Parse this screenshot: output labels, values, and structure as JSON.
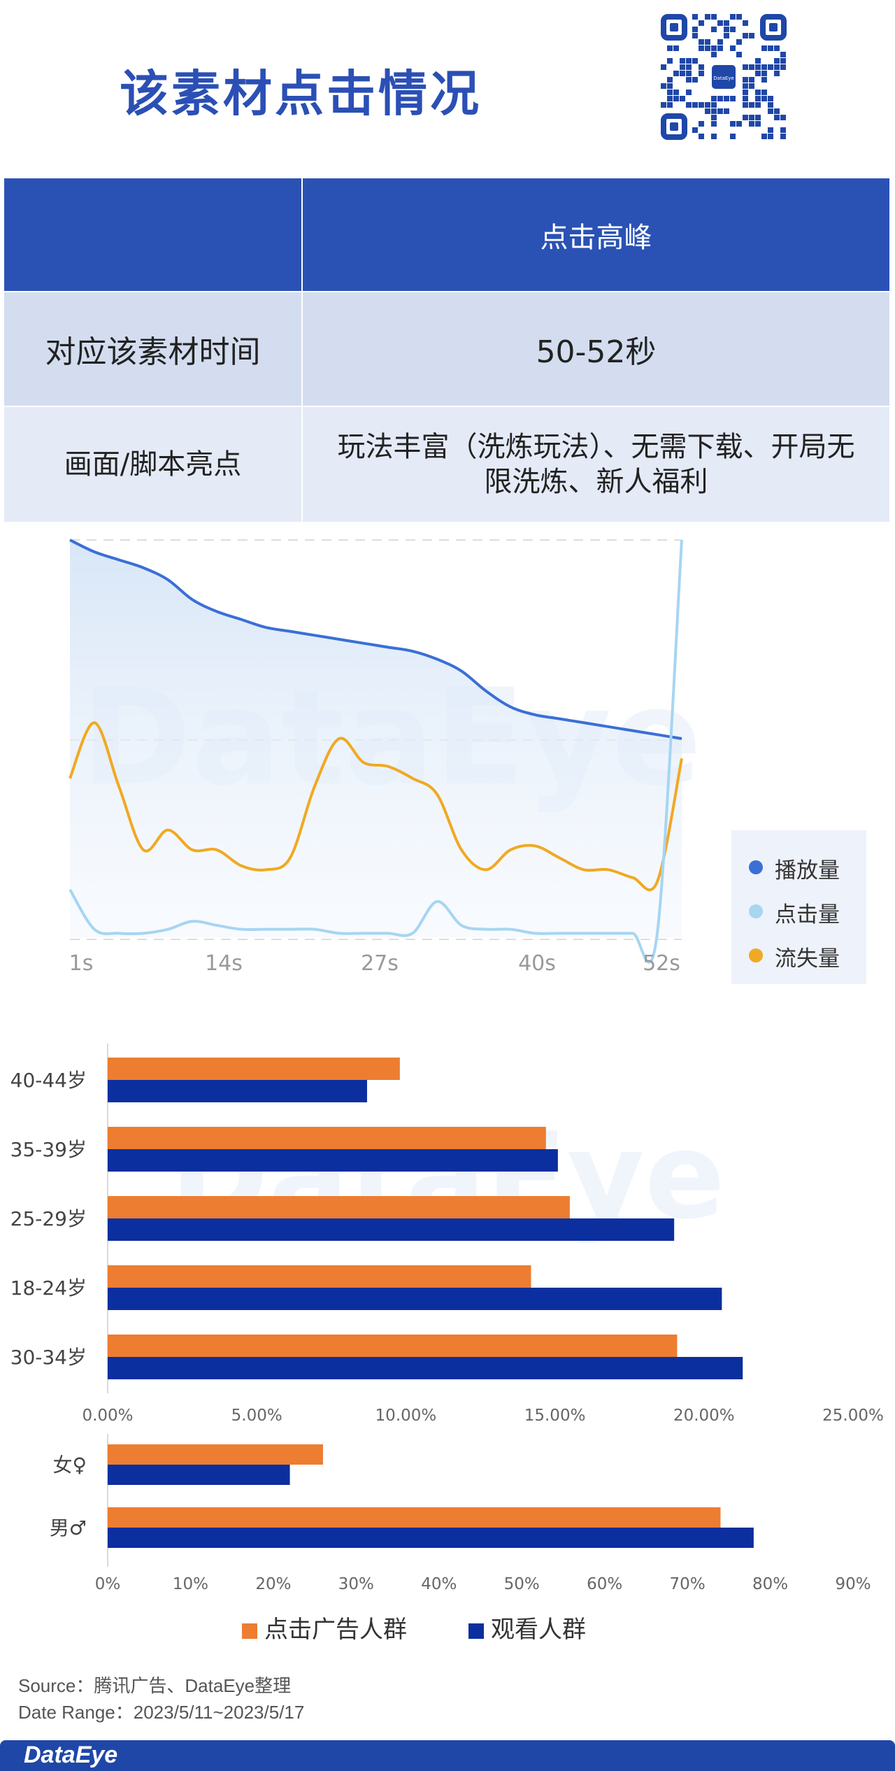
{
  "header": {
    "title": "该素材点击情况"
  },
  "table": {
    "header": [
      "",
      "点击高峰"
    ],
    "rows": [
      {
        "label": "对应该素材时间",
        "value": "50-52秒"
      },
      {
        "label": "画面/脚本亮点",
        "value_line1": "玩法丰富（洗炼玩法）、无需下载、开局无",
        "value_line2": "限洗炼、新人福利"
      }
    ]
  },
  "watermark": "DataEye",
  "chart_data": [
    {
      "type": "line",
      "x_ticks": [
        "1s",
        "14s",
        "27s",
        "40s",
        "52s"
      ],
      "y_axis_visible": false,
      "grid": "dashed horizontal",
      "legend_position": "right",
      "series": [
        {
          "name": "播放量",
          "color": "#3a6fd6",
          "values": [
            100,
            97,
            95,
            93,
            90,
            85,
            82,
            80,
            78,
            77,
            76,
            75,
            74,
            73,
            72,
            70,
            67,
            62,
            58,
            56,
            55,
            54,
            53,
            52,
            51,
            50
          ]
        },
        {
          "name": "点击量",
          "color": "#a7d5f2",
          "values": [
            12,
            2,
            1,
            1,
            2,
            4,
            3,
            2,
            2,
            2,
            2,
            1,
            1,
            1,
            1,
            9,
            3,
            2,
            2,
            1,
            1,
            1,
            1,
            1,
            1,
            100
          ]
        },
        {
          "name": "流失量",
          "color": "#f0a923",
          "values": [
            40,
            54,
            38,
            22,
            27,
            22,
            22,
            18,
            17,
            20,
            38,
            50,
            44,
            43,
            40,
            36,
            22,
            17,
            22,
            23,
            20,
            17,
            17,
            15,
            14,
            45
          ]
        }
      ]
    },
    {
      "type": "bar",
      "orientation": "horizontal",
      "categories": [
        "40-44岁",
        "35-39岁",
        "25-29岁",
        "18-24岁",
        "30-34岁"
      ],
      "x_ticks": [
        "0.00%",
        "5.00%",
        "10.00%",
        "15.00%",
        "20.00%",
        "25.00%"
      ],
      "xlim": [
        0,
        25
      ],
      "series": [
        {
          "name": "点击广告人群",
          "color": "#ed7d31",
          "values": [
            9.8,
            14.7,
            15.5,
            14.2,
            19.1
          ]
        },
        {
          "name": "观看人群",
          "color": "#0b2f9e",
          "values": [
            8.7,
            15.1,
            19.0,
            20.6,
            21.3
          ]
        }
      ]
    },
    {
      "type": "bar",
      "orientation": "horizontal",
      "categories": [
        "女♀",
        "男♂"
      ],
      "x_ticks": [
        "0%",
        "10%",
        "20%",
        "30%",
        "40%",
        "50%",
        "60%",
        "70%",
        "80%",
        "90%"
      ],
      "xlim": [
        0,
        90
      ],
      "series": [
        {
          "name": "点击广告人群",
          "color": "#ed7d31",
          "values": [
            26,
            74
          ]
        },
        {
          "name": "观看人群",
          "color": "#0b2f9e",
          "values": [
            22,
            78
          ]
        }
      ]
    }
  ],
  "legend2": {
    "items": [
      {
        "label": "点击广告人群",
        "color": "#ed7d31"
      },
      {
        "label": "观看人群",
        "color": "#0b2f9e"
      }
    ]
  },
  "source": {
    "line1": "Source：腾讯广告、DataEye整理",
    "line2": "Date Range：2023/5/11~2023/5/17"
  },
  "footer": {
    "logo": "DataEye"
  }
}
